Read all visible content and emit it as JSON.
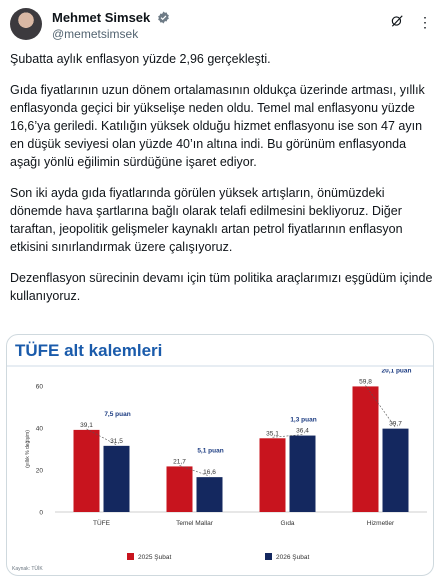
{
  "profile": {
    "name": "Mehmet Simsek",
    "handle": "@memetsimsek"
  },
  "tweet": {
    "paragraphs": [
      "Şubatta aylık enflasyon yüzde 2,96 gerçekleşti.",
      "Gıda fiyatlarının uzun dönem ortalamasının oldukça üzerinde artması, yıllık enflasyonda geçici bir yükselişe neden oldu. Temel mal enflasyonu yüzde 16,6’ya geriledi. Katılığın yüksek olduğu hizmet enflasyonu ise son 47 ayın en düşük seviyesi olan yüzde 40’ın altına indi. Bu görünüm enflasyonda aşağı yönlü eğilimin sürdüğüne işaret ediyor.",
      "Son iki ayda gıda fiyatlarında görülen yüksek artışların, önümüzdeki dönemde hava şartlarına bağlı olarak telafi edilmesini bekliyoruz. Diğer taraftan, jeopolitik gelişmeler kaynaklı artan petrol fiyatlarının enflasyon etkisini sınırlandırmak üzere çalışıyoruz.",
      "Dezenflasyon sürecinin devamı için tüm politika araçlarımızı eşgüdüm içinde kullanıyoruz."
    ]
  },
  "card": {
    "title": "TÜFE alt kalemleri",
    "footer": "Kaynak: TÜİK"
  },
  "chart_data": {
    "type": "bar",
    "title": "TÜFE alt kalemleri",
    "ylabel": "(yıllık % değişim)",
    "ylim": [
      0,
      60
    ],
    "yticks": [
      0,
      20,
      40,
      60
    ],
    "categories": [
      "TÜFE",
      "Temel Mallar",
      "Gıda",
      "Hizmetler"
    ],
    "series": [
      {
        "name": "2025 Şubat",
        "color": "#c8141e",
        "values": [
          39.1,
          21.7,
          35.1,
          59.8
        ],
        "labels": [
          "39,1",
          "21,7",
          "35,1",
          "59,8"
        ]
      },
      {
        "name": "2026 Şubat",
        "color": "#14285f",
        "values": [
          31.5,
          16.6,
          36.4,
          39.7
        ],
        "labels": [
          "31,5",
          "16,6",
          "36,4",
          "39,7"
        ]
      }
    ],
    "annotations": [
      "7,5 puan",
      "5,1 puan",
      "1,3 puan",
      "20,1 puan"
    ],
    "legend": "bottom"
  }
}
